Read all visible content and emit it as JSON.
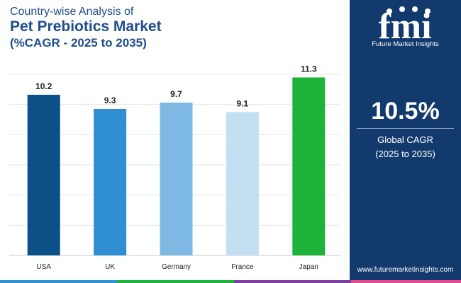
{
  "header": {
    "line1": "Country-wise Analysis of",
    "line2": "Pet Prebiotics Market",
    "line3": "(%CAGR - 2025 to 2035)"
  },
  "chart_data": {
    "type": "bar",
    "categories": [
      "USA",
      "UK",
      "Germany",
      "France",
      "Japan"
    ],
    "values": [
      10.2,
      9.3,
      9.7,
      9.1,
      11.3
    ],
    "colors": [
      "#0b5188",
      "#2f8fd2",
      "#7db9e2",
      "#c3e0f3",
      "#1db33a"
    ],
    "ylim": [
      0,
      11.5
    ],
    "grid": true,
    "data_labels": [
      "10.2",
      "9.3",
      "9.7",
      "9.1",
      "11.3"
    ]
  },
  "side_panel": {
    "logo_text": "fmi",
    "logo_subtitle": "Future Market Insights",
    "cagr_value": "10.5%",
    "cagr_label": "Global CAGR",
    "cagr_period": "(2025 to 2035)",
    "website": "www.futuremarketinsights.com"
  },
  "colors": {
    "panel": "#123a6c",
    "title": "#1f4e8c",
    "strip": [
      "#2f8fd2",
      "#1db33a",
      "#7b3fa0",
      "#e44b8d"
    ]
  }
}
